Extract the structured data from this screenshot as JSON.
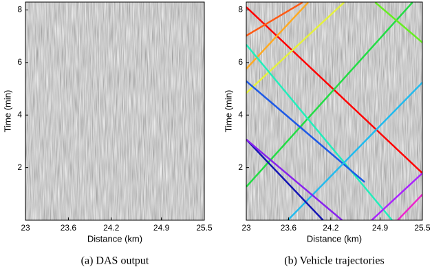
{
  "chart_data": [
    {
      "type": "image",
      "caption": "(a) DAS output",
      "xlabel": "Distance (km)",
      "ylabel": "Time (min)",
      "xlim": [
        23,
        25.5
      ],
      "xticks": [
        23,
        23.6,
        24.2,
        24.9,
        25.5
      ],
      "ylim": [
        0,
        8.3
      ],
      "yticks": [
        2,
        4,
        6,
        8
      ]
    },
    {
      "type": "line",
      "caption": "(b) Vehicle trajectories",
      "xlabel": "Distance (km)",
      "ylabel": "Time (min)",
      "xlim": [
        23,
        25.5
      ],
      "xticks": [
        23,
        23.6,
        24.2,
        24.9,
        25.5
      ],
      "ylim": [
        0,
        8.3
      ],
      "yticks": [
        2,
        4,
        6,
        8
      ],
      "series": [
        {
          "color": "#ff0000",
          "x": [
            23,
            25.5
          ],
          "values": [
            8.11,
            1.79
          ]
        },
        {
          "color": "#ff5a14",
          "x": [
            23,
            23.8
          ],
          "values": [
            7.02,
            8.29
          ]
        },
        {
          "color": "#ffaa22",
          "x": [
            23,
            23.88
          ],
          "values": [
            5.76,
            8.29
          ]
        },
        {
          "color": "#e6f23c",
          "x": [
            23,
            24.39
          ],
          "values": [
            4.84,
            8.29
          ]
        },
        {
          "color": "#22dd44",
          "x": [
            23,
            25.36
          ],
          "values": [
            1.27,
            8.29
          ]
        },
        {
          "color": "#22eebb",
          "x": [
            23,
            25.07
          ],
          "values": [
            6.68,
            0
          ]
        },
        {
          "color": "#66ee22",
          "x": [
            24.83,
            25.5
          ],
          "values": [
            8.29,
            6.76
          ]
        },
        {
          "color": "#1e5ae6",
          "x": [
            23,
            24.68
          ],
          "values": [
            5.29,
            1.45
          ]
        },
        {
          "color": "#22bbee",
          "x": [
            23.59,
            25.5
          ],
          "values": [
            0,
            5.24
          ]
        },
        {
          "color": "#1414b4",
          "x": [
            23,
            24.09
          ],
          "values": [
            3.07,
            0
          ]
        },
        {
          "color": "#8822ee",
          "x": [
            23,
            24.36
          ],
          "values": [
            3.07,
            0
          ]
        },
        {
          "color": "#aa22ff",
          "x": [
            24.78,
            25.5
          ],
          "values": [
            0,
            1.79
          ]
        },
        {
          "color": "#ee22cc",
          "x": [
            25.15,
            25.5
          ],
          "values": [
            0,
            0.98
          ]
        }
      ]
    }
  ]
}
